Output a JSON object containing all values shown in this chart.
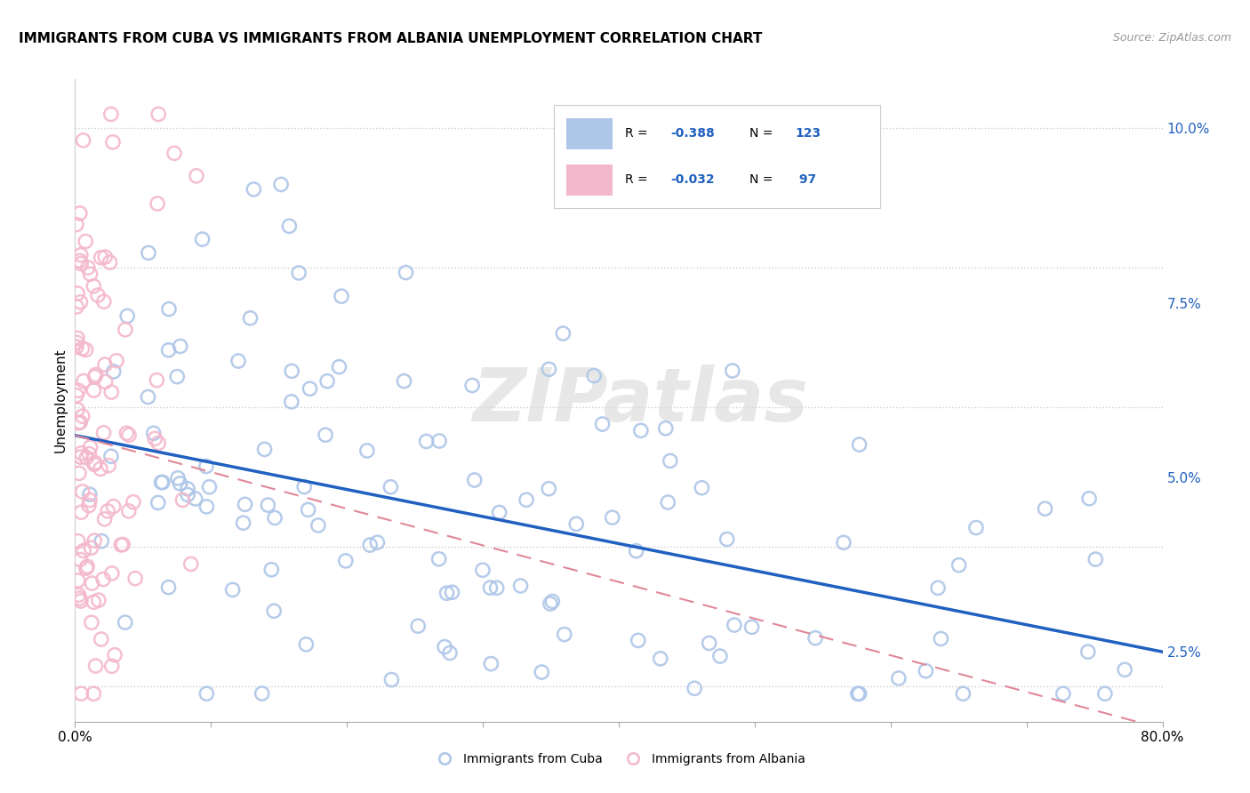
{
  "title": "IMMIGRANTS FROM CUBA VS IMMIGRANTS FROM ALBANIA UNEMPLOYMENT CORRELATION CHART",
  "source": "Source: ZipAtlas.com",
  "ylabel": "Unemployment",
  "yticks": [
    0.025,
    0.05,
    0.075,
    0.1
  ],
  "ytick_labels": [
    "2.5%",
    "5.0%",
    "7.5%",
    "10.0%"
  ],
  "xlim": [
    0.0,
    0.8
  ],
  "ylim": [
    0.015,
    0.107
  ],
  "cuba_R": "-0.388",
  "cuba_N": "123",
  "albania_R": "-0.032",
  "albania_N": "97",
  "cuba_color": "#aec6e8",
  "cuba_edge_color": "#7aacd4",
  "albania_color": "#f4b8cc",
  "albania_edge_color": "#e87898",
  "cuba_line_color": "#2060c0",
  "albania_line_color": "#e08898",
  "legend_text_color": "#2060c0",
  "watermark": "ZIPatlas",
  "background_color": "#ffffff",
  "grid_color": "#cccccc",
  "cuba_line_start_y": 0.056,
  "cuba_line_end_y": 0.025,
  "albania_line_start_y": 0.056,
  "albania_line_end_y": 0.014
}
